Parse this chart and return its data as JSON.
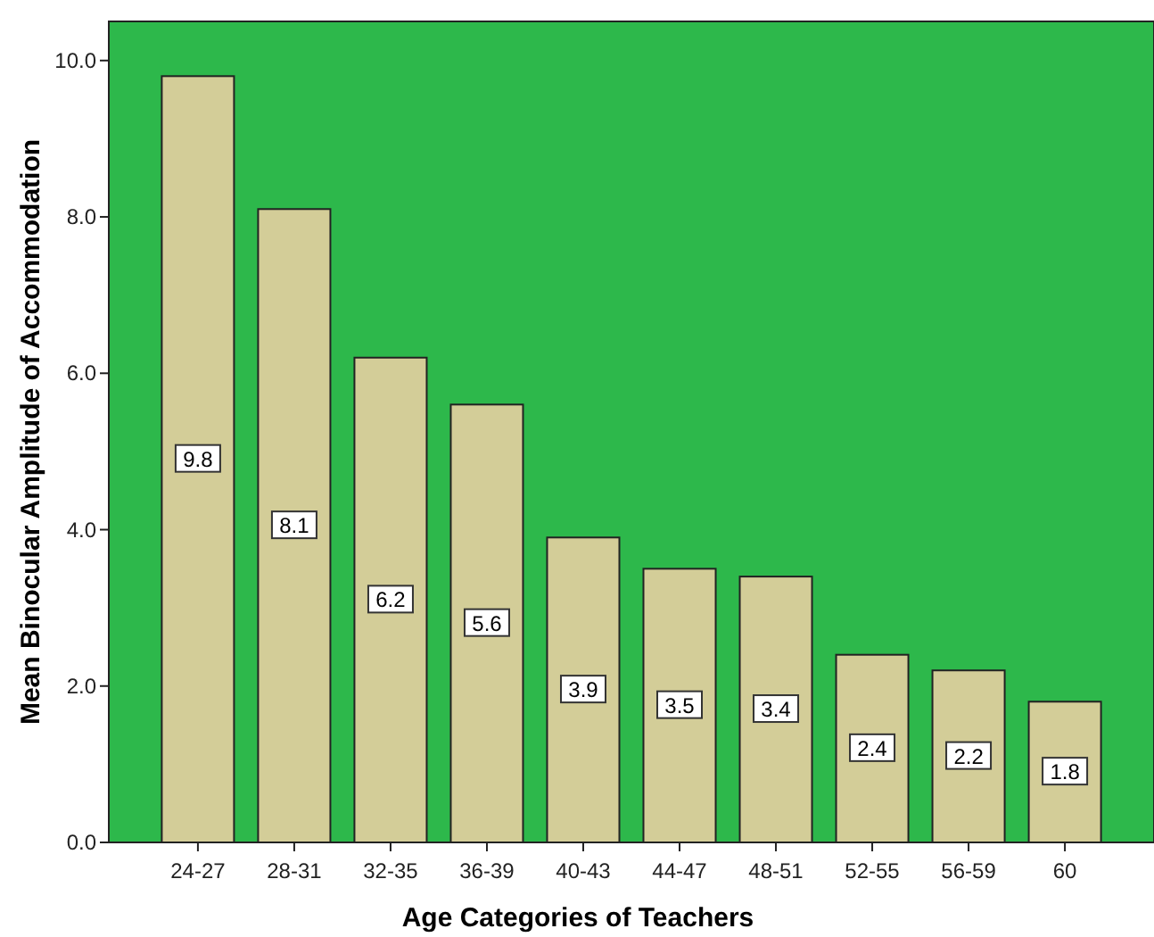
{
  "chart_data": {
    "type": "bar",
    "xlabel": "Age Categories of Teachers",
    "ylabel": "Mean Binocular Amplitude of Accommodation",
    "categories": [
      "24-27",
      "28-31",
      "32-35",
      "36-39",
      "40-43",
      "44-47",
      "48-51",
      "52-55",
      "56-59",
      "60"
    ],
    "values": [
      9.8,
      8.1,
      6.2,
      5.6,
      3.9,
      3.5,
      3.4,
      2.4,
      2.2,
      1.8
    ],
    "color": "#d3cd98",
    "ylim": [
      0,
      10.5
    ],
    "yticks": [
      {
        "value": 0,
        "label": "0.0"
      },
      {
        "value": 2,
        "label": "2.0"
      },
      {
        "value": 4,
        "label": "4.0"
      },
      {
        "value": 6,
        "label": "6.0"
      },
      {
        "value": 8,
        "label": "8.0"
      },
      {
        "value": 10,
        "label": "10.0"
      }
    ],
    "data_labels": true,
    "grid": false
  }
}
